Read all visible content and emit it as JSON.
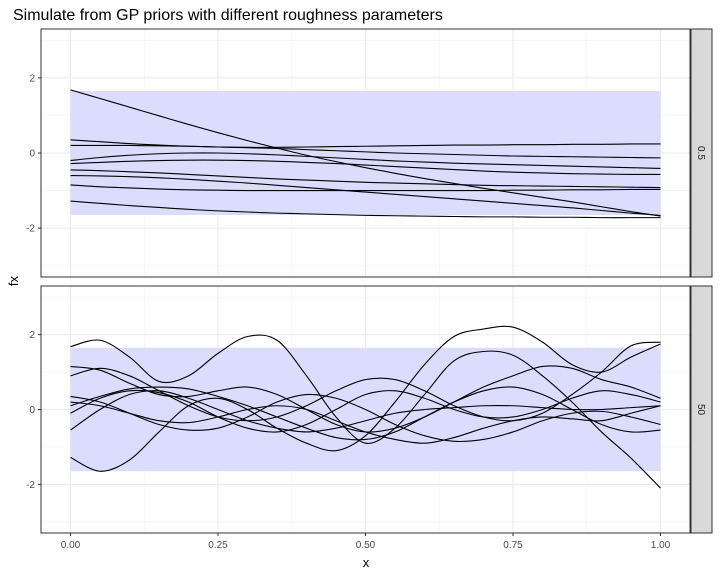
{
  "chart_data": {
    "type": "line",
    "title": "Simulate from GP priors with different roughness parameters",
    "xlabel": "x",
    "ylabel": "fx",
    "xlim": [
      0,
      1
    ],
    "ylim": [
      -3.3,
      3.3
    ],
    "x_ticks": [
      0,
      0.25,
      0.5,
      0.75,
      1
    ],
    "x_tick_labels": [
      "0.00",
      "0.25",
      "0.50",
      "0.75",
      "1.00"
    ],
    "y_ticks": [
      -2,
      0,
      2
    ],
    "y_tick_labels": [
      "-2",
      "0",
      "2"
    ],
    "band": {
      "lower": -1.65,
      "upper": 1.65,
      "color": "#dcdcff"
    },
    "line_color": "#000000",
    "strip_fill": "#d9d9d9",
    "grid": true,
    "x": [
      0,
      0.05,
      0.1,
      0.15,
      0.2,
      0.25,
      0.3,
      0.35,
      0.4,
      0.45,
      0.5,
      0.55,
      0.6,
      0.65,
      0.7,
      0.75,
      0.8,
      0.85,
      0.9,
      0.95,
      1
    ],
    "panels": [
      {
        "strip_label": "0.5",
        "series": [
          {
            "values": [
              1.68,
              1.45,
              1.22,
              0.99,
              0.76,
              0.54,
              0.33,
              0.13,
              -0.06,
              -0.23,
              -0.39,
              -0.54,
              -0.68,
              -0.81,
              -0.94,
              -1.06,
              -1.18,
              -1.3,
              -1.43,
              -1.56,
              -1.68
            ]
          },
          {
            "values": [
              0.35,
              0.3,
              0.25,
              0.21,
              0.18,
              0.16,
              0.15,
              0.15,
              0.16,
              0.17,
              0.18,
              0.19,
              0.2,
              0.21,
              0.21,
              0.22,
              0.22,
              0.23,
              0.23,
              0.24,
              0.24
            ]
          },
          {
            "values": [
              0.2,
              0.2,
              0.2,
              0.19,
              0.18,
              0.16,
              0.14,
              0.12,
              0.09,
              0.06,
              0.03,
              0.0,
              -0.02,
              -0.04,
              -0.06,
              -0.08,
              -0.09,
              -0.1,
              -0.11,
              -0.12,
              -0.13
            ]
          },
          {
            "values": [
              -0.2,
              -0.12,
              -0.06,
              -0.02,
              0.0,
              0.0,
              -0.02,
              -0.05,
              -0.09,
              -0.13,
              -0.17,
              -0.21,
              -0.24,
              -0.27,
              -0.29,
              -0.31,
              -0.33,
              -0.35,
              -0.37,
              -0.39,
              -0.41
            ]
          },
          {
            "values": [
              -0.28,
              -0.25,
              -0.22,
              -0.2,
              -0.19,
              -0.19,
              -0.2,
              -0.22,
              -0.25,
              -0.28,
              -0.32,
              -0.36,
              -0.4,
              -0.44,
              -0.48,
              -0.51,
              -0.53,
              -0.55,
              -0.56,
              -0.57,
              -0.57
            ]
          },
          {
            "values": [
              -0.45,
              -0.47,
              -0.5,
              -0.53,
              -0.57,
              -0.61,
              -0.65,
              -0.69,
              -0.72,
              -0.75,
              -0.78,
              -0.8,
              -0.82,
              -0.84,
              -0.86,
              -0.87,
              -0.88,
              -0.89,
              -0.9,
              -0.91,
              -0.92
            ]
          },
          {
            "values": [
              -0.6,
              -0.61,
              -0.63,
              -0.66,
              -0.7,
              -0.75,
              -0.8,
              -0.86,
              -0.92,
              -0.98,
              -1.04,
              -1.1,
              -1.16,
              -1.22,
              -1.28,
              -1.34,
              -1.4,
              -1.46,
              -1.53,
              -1.6,
              -1.66
            ]
          },
          {
            "values": [
              -0.85,
              -0.9,
              -0.93,
              -0.96,
              -0.98,
              -0.99,
              -1.0,
              -1.0,
              -1.0,
              -1.0,
              -1.0,
              -1.0,
              -1.0,
              -1.0,
              -1.0,
              -0.99,
              -0.99,
              -0.98,
              -0.98,
              -0.97,
              -0.97
            ]
          },
          {
            "values": [
              -1.28,
              -1.34,
              -1.4,
              -1.45,
              -1.5,
              -1.54,
              -1.57,
              -1.6,
              -1.62,
              -1.64,
              -1.66,
              -1.67,
              -1.68,
              -1.69,
              -1.7,
              -1.7,
              -1.71,
              -1.71,
              -1.72,
              -1.72,
              -1.72
            ]
          }
        ]
      },
      {
        "strip_label": "50",
        "series": [
          {
            "values": [
              1.68,
              1.85,
              1.4,
              0.75,
              0.9,
              1.5,
              1.95,
              1.85,
              0.9,
              -0.2,
              -0.9,
              -0.5,
              0.4,
              1.3,
              1.55,
              1.45,
              0.9,
              0.2,
              -0.6,
              -1.3,
              -2.1
            ]
          },
          {
            "values": [
              -1.28,
              -1.65,
              -1.35,
              -0.6,
              0.1,
              0.3,
              0.0,
              -0.5,
              -0.9,
              -1.1,
              -0.7,
              0.2,
              1.2,
              1.95,
              2.15,
              2.2,
              1.8,
              1.2,
              1.0,
              1.4,
              1.75
            ]
          },
          {
            "values": [
              0.9,
              1.1,
              0.9,
              0.5,
              0.1,
              -0.2,
              -0.3,
              -0.2,
              0.1,
              0.5,
              0.8,
              0.8,
              0.5,
              0.1,
              -0.2,
              -0.3,
              -0.1,
              0.4,
              1.0,
              1.7,
              1.8
            ]
          },
          {
            "values": [
              1.15,
              1.05,
              0.7,
              0.4,
              0.35,
              0.5,
              0.6,
              0.4,
              0.0,
              -0.4,
              -0.6,
              -0.5,
              -0.2,
              0.2,
              0.6,
              0.9,
              1.15,
              1.1,
              0.8,
              0.6,
              0.3
            ]
          },
          {
            "values": [
              0.1,
              0.35,
              0.55,
              0.6,
              0.55,
              0.35,
              0.1,
              -0.2,
              -0.5,
              -0.75,
              -0.8,
              -0.6,
              -0.2,
              0.2,
              0.5,
              0.6,
              0.4,
              0.0,
              -0.4,
              -0.6,
              -0.55
            ]
          },
          {
            "values": [
              -0.1,
              0.3,
              0.5,
              0.45,
              0.2,
              -0.2,
              -0.5,
              -0.6,
              -0.4,
              0.0,
              0.4,
              0.5,
              0.3,
              0.0,
              -0.2,
              -0.2,
              0.0,
              0.3,
              0.5,
              0.4,
              0.2
            ]
          },
          {
            "values": [
              0.35,
              0.2,
              -0.1,
              -0.4,
              -0.55,
              -0.5,
              -0.2,
              0.2,
              0.4,
              0.3,
              0.0,
              -0.4,
              -0.7,
              -0.85,
              -0.8,
              -0.6,
              -0.3,
              -0.1,
              -0.05,
              -0.2,
              -0.4
            ]
          },
          {
            "values": [
              -0.55,
              0.0,
              0.4,
              0.5,
              0.3,
              0.0,
              -0.3,
              -0.5,
              -0.6,
              -0.5,
              -0.3,
              -0.1,
              0.0,
              0.05,
              0.1,
              0.1,
              0.05,
              0.0,
              0.0,
              0.05,
              0.1
            ]
          },
          {
            "values": [
              0.2,
              0.1,
              -0.1,
              -0.3,
              -0.35,
              -0.2,
              0.0,
              0.1,
              0.0,
              -0.3,
              -0.6,
              -0.8,
              -0.9,
              -0.75,
              -0.5,
              -0.3,
              -0.2,
              -0.25,
              -0.3,
              -0.1,
              0.1
            ]
          }
        ]
      }
    ]
  }
}
